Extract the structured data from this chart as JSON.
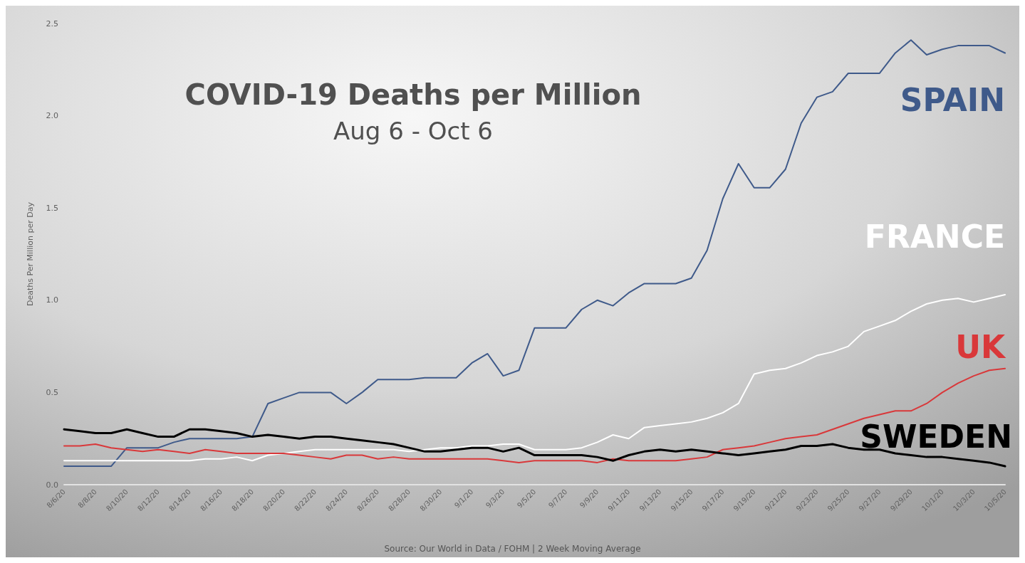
{
  "chart_data": {
    "type": "line",
    "title": "COVID-19 Deaths per Million",
    "subtitle": "Aug 6 - Oct 6",
    "ylabel": "Deaths Per Million per Day",
    "annotations": [
      "Source: Our World in Data / FOHM | 2 Week Moving Average"
    ],
    "categories": [
      "8/6/20",
      null,
      "8/8/20",
      null,
      "8/10/20",
      null,
      "8/12/20",
      null,
      "8/14/20",
      null,
      "8/16/20",
      null,
      "8/18/20",
      null,
      "8/20/20",
      null,
      "8/22/20",
      null,
      "8/24/20",
      null,
      "8/26/20",
      null,
      "8/28/20",
      null,
      "8/30/20",
      null,
      "9/1/20",
      null,
      "9/3/20",
      null,
      "9/5/20",
      null,
      "9/7/20",
      null,
      "9/9/20",
      null,
      "9/11/20",
      null,
      "9/13/20",
      null,
      "9/15/20",
      null,
      "9/17/20",
      null,
      "9/19/20",
      null,
      "9/21/20",
      null,
      "9/23/20",
      null,
      "9/25/20",
      null,
      "9/27/20",
      null,
      "9/29/20",
      null,
      "10/1/20",
      null,
      "10/3/20",
      null,
      "10/5/20"
    ],
    "series": [
      {
        "name": "SPAIN",
        "color": "#3f5a8a",
        "values": [
          0.1,
          0.1,
          0.1,
          0.1,
          0.2,
          0.2,
          0.2,
          0.23,
          0.25,
          0.25,
          0.25,
          0.25,
          0.26,
          0.44,
          0.47,
          0.5,
          0.5,
          0.5,
          0.44,
          0.5,
          0.57,
          0.57,
          0.57,
          0.58,
          0.58,
          0.58,
          0.66,
          0.71,
          0.59,
          0.62,
          0.85,
          0.85,
          0.85,
          0.95,
          1.0,
          0.97,
          1.04,
          1.09,
          1.09,
          1.09,
          1.12,
          1.27,
          1.55,
          1.74,
          1.61,
          1.61,
          1.71,
          1.96,
          2.1,
          2.13,
          2.23,
          2.23,
          2.23,
          2.34,
          2.41,
          2.33,
          2.36,
          2.38,
          2.38,
          2.38,
          2.34
        ]
      },
      {
        "name": "FRANCE",
        "color": "#ffffff",
        "values": [
          0.13,
          0.13,
          0.13,
          0.13,
          0.13,
          0.13,
          0.13,
          0.13,
          0.13,
          0.14,
          0.14,
          0.15,
          0.13,
          0.16,
          0.17,
          0.18,
          0.19,
          0.19,
          0.19,
          0.19,
          0.19,
          0.19,
          0.18,
          0.19,
          0.2,
          0.2,
          0.21,
          0.21,
          0.22,
          0.22,
          0.19,
          0.19,
          0.19,
          0.2,
          0.23,
          0.27,
          0.25,
          0.31,
          0.32,
          0.33,
          0.34,
          0.36,
          0.39,
          0.44,
          0.6,
          0.62,
          0.63,
          0.66,
          0.7,
          0.72,
          0.75,
          0.83,
          0.86,
          0.89,
          0.94,
          0.98,
          1.0,
          1.01,
          0.99,
          1.01,
          1.03
        ]
      },
      {
        "name": "UK",
        "color": "#d9383a",
        "values": [
          0.21,
          0.21,
          0.22,
          0.2,
          0.19,
          0.18,
          0.19,
          0.18,
          0.17,
          0.19,
          0.18,
          0.17,
          0.17,
          0.17,
          0.17,
          0.16,
          0.15,
          0.14,
          0.16,
          0.16,
          0.14,
          0.15,
          0.14,
          0.14,
          0.14,
          0.14,
          0.14,
          0.14,
          0.13,
          0.12,
          0.13,
          0.13,
          0.13,
          0.13,
          0.12,
          0.14,
          0.13,
          0.13,
          0.13,
          0.13,
          0.14,
          0.15,
          0.19,
          0.2,
          0.21,
          0.23,
          0.25,
          0.26,
          0.27,
          0.3,
          0.33,
          0.36,
          0.38,
          0.4,
          0.4,
          0.44,
          0.5,
          0.55,
          0.59,
          0.62,
          0.63
        ]
      },
      {
        "name": "SWEDEN",
        "color": "#000000",
        "values": [
          0.3,
          0.29,
          0.28,
          0.28,
          0.3,
          0.28,
          0.26,
          0.26,
          0.3,
          0.3,
          0.29,
          0.28,
          0.26,
          0.27,
          0.26,
          0.25,
          0.26,
          0.26,
          0.25,
          0.24,
          0.23,
          0.22,
          0.2,
          0.18,
          0.18,
          0.19,
          0.2,
          0.2,
          0.18,
          0.2,
          0.16,
          0.16,
          0.16,
          0.16,
          0.15,
          0.13,
          0.16,
          0.18,
          0.19,
          0.18,
          0.19,
          0.18,
          0.17,
          0.16,
          0.17,
          0.18,
          0.19,
          0.21,
          0.21,
          0.22,
          0.2,
          0.19,
          0.19,
          0.17,
          0.16,
          0.15,
          0.15,
          0.14,
          0.13,
          0.12,
          0.1
        ]
      }
    ],
    "ylim": [
      0,
      2.5
    ],
    "yticks": [
      {
        "value": 0,
        "label": "0.0"
      },
      {
        "value": 0.5,
        "label": "0.5"
      },
      {
        "value": 1,
        "label": "1.0"
      },
      {
        "value": 1.5,
        "label": "1.5"
      },
      {
        "value": 2,
        "label": "2.0"
      },
      {
        "value": 2.5,
        "label": "2.5"
      }
    ],
    "grid": false,
    "legend": false,
    "marker": "none",
    "line_style": "solid"
  }
}
